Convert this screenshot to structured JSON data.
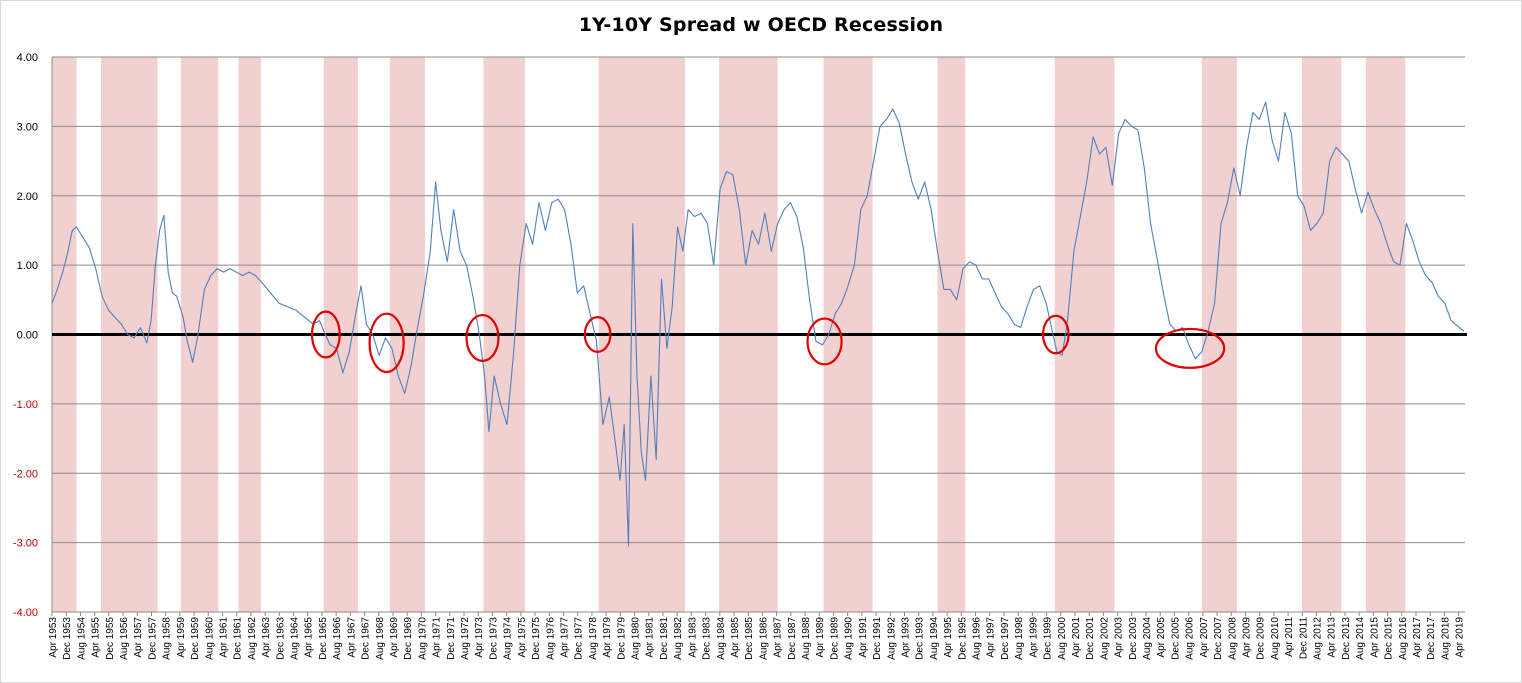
{
  "chart_data": {
    "type": "line",
    "title": "1Y-10Y Spread w OECD Recession",
    "xlabel": "",
    "ylabel": "",
    "ylim": [
      -4,
      4
    ],
    "x_range": [
      "Apr 1953",
      "Jun 2019"
    ],
    "y_ticks": [
      "4.00",
      "3.00",
      "2.00",
      "1.00",
      "0.00",
      "-1.00",
      "-2.00",
      "-3.00",
      "-4.00"
    ],
    "grid": true,
    "legend": "none",
    "colors": {
      "line": "#4f81bd",
      "recession": "#f2d0d0",
      "zero_line": "#000000",
      "circle": "#e00000",
      "negative_tick": "#c00000",
      "grid": "#8c8c8c"
    },
    "x_tick_labels": [
      "Apr 1953",
      "Dec 1953",
      "Aug 1954",
      "Apr 1955",
      "Dec 1955",
      "Aug 1956",
      "Apr 1957",
      "Dec 1957",
      "Aug 1958",
      "Apr 1959",
      "Dec 1959",
      "Aug 1960",
      "Apr 1961",
      "Dec 1961",
      "Aug 1962",
      "Apr 1963",
      "Dec 1963",
      "Aug 1964",
      "Apr 1965",
      "Dec 1965",
      "Aug 1966",
      "Apr 1967",
      "Dec 1967",
      "Aug 1968",
      "Apr 1969",
      "Dec 1969",
      "Aug 1970",
      "Apr 1971",
      "Dec 1971",
      "Aug 1972",
      "Apr 1973",
      "Dec 1973",
      "Aug 1974",
      "Apr 1975",
      "Dec 1975",
      "Aug 1976",
      "Apr 1977",
      "Dec 1977",
      "Aug 1978",
      "Apr 1979",
      "Dec 1979",
      "Aug 1980",
      "Apr 1981",
      "Dec 1981",
      "Aug 1982",
      "Apr 1983",
      "Dec 1983",
      "Aug 1984",
      "Apr 1985",
      "Dec 1985",
      "Aug 1986",
      "Apr 1987",
      "Dec 1987",
      "Aug 1988",
      "Apr 1989",
      "Dec 1989",
      "Aug 1990",
      "Apr 1991",
      "Dec 1991",
      "Aug 1992",
      "Apr 1993",
      "Dec 1993",
      "Aug 1994",
      "Apr 1995",
      "Dec 1995",
      "Aug 1996",
      "Apr 1997",
      "Dec 1997",
      "Aug 1998",
      "Apr 1999",
      "Dec 1999",
      "Aug 2000",
      "Apr 2001",
      "Dec 2001",
      "Aug 2002",
      "Apr 2003",
      "Dec 2003",
      "Aug 2004",
      "Apr 2005",
      "Dec 2005",
      "Aug 2006",
      "Apr 2007",
      "Dec 2007",
      "Aug 2008",
      "Apr 2009",
      "Dec 2009",
      "Aug 2010",
      "Apr 2011",
      "Dec 2011",
      "Aug 2012",
      "Apr 2013",
      "Dec 2013",
      "Aug 2014",
      "Apr 2015",
      "Dec 2015",
      "Aug 2016",
      "Apr 2017",
      "Dec 2017",
      "Aug 2018",
      "Apr 2019"
    ],
    "recessions": [
      {
        "start": 1953.25,
        "end": 1954.4
      },
      {
        "start": 1955.55,
        "end": 1958.2
      },
      {
        "start": 1959.3,
        "end": 1961.05
      },
      {
        "start": 1962.0,
        "end": 1963.05
      },
      {
        "start": 1966.0,
        "end": 1967.6
      },
      {
        "start": 1969.1,
        "end": 1970.75
      },
      {
        "start": 1973.5,
        "end": 1975.45
      },
      {
        "start": 1978.9,
        "end": 1982.95
      },
      {
        "start": 1984.55,
        "end": 1987.3
      },
      {
        "start": 1989.45,
        "end": 1991.75
      },
      {
        "start": 1994.8,
        "end": 1996.1
      },
      {
        "start": 2000.3,
        "end": 2003.1
      },
      {
        "start": 2007.2,
        "end": 2008.85
      },
      {
        "start": 2011.9,
        "end": 2013.75
      },
      {
        "start": 2014.9,
        "end": 2016.75
      }
    ],
    "inversion_circles": [
      {
        "x": 1966.1,
        "y": 0.0,
        "rx_years": 0.65,
        "ry": 0.33
      },
      {
        "x": 1968.95,
        "y": -0.12,
        "rx_years": 0.8,
        "ry": 0.42
      },
      {
        "x": 1973.45,
        "y": -0.05,
        "rx_years": 0.75,
        "ry": 0.33
      },
      {
        "x": 1978.85,
        "y": 0.0,
        "rx_years": 0.6,
        "ry": 0.25
      },
      {
        "x": 1989.5,
        "y": -0.1,
        "rx_years": 0.8,
        "ry": 0.33
      },
      {
        "x": 2000.35,
        "y": 0.0,
        "rx_years": 0.6,
        "ry": 0.27
      },
      {
        "x": 2006.65,
        "y": -0.2,
        "rx_years": 1.6,
        "ry": 0.28
      }
    ],
    "series": [
      {
        "name": "1Y-10Y Spread",
        "points": [
          [
            1953.25,
            0.45
          ],
          [
            1953.5,
            0.65
          ],
          [
            1953.75,
            0.9
          ],
          [
            1954.0,
            1.2
          ],
          [
            1954.2,
            1.5
          ],
          [
            1954.4,
            1.55
          ],
          [
            1954.7,
            1.4
          ],
          [
            1955.0,
            1.25
          ],
          [
            1955.3,
            0.95
          ],
          [
            1955.6,
            0.55
          ],
          [
            1955.9,
            0.35
          ],
          [
            1956.2,
            0.25
          ],
          [
            1956.5,
            0.15
          ],
          [
            1956.8,
            0.0
          ],
          [
            1957.1,
            -0.05
          ],
          [
            1957.4,
            0.1
          ],
          [
            1957.7,
            -0.12
          ],
          [
            1957.9,
            0.2
          ],
          [
            1958.1,
            1.0
          ],
          [
            1958.3,
            1.5
          ],
          [
            1958.5,
            1.72
          ],
          [
            1958.7,
            0.9
          ],
          [
            1958.9,
            0.6
          ],
          [
            1959.1,
            0.55
          ],
          [
            1959.4,
            0.25
          ],
          [
            1959.6,
            -0.1
          ],
          [
            1959.85,
            -0.4
          ],
          [
            1960.1,
            0.0
          ],
          [
            1960.4,
            0.65
          ],
          [
            1960.7,
            0.85
          ],
          [
            1961.0,
            0.95
          ],
          [
            1961.3,
            0.9
          ],
          [
            1961.6,
            0.95
          ],
          [
            1961.9,
            0.9
          ],
          [
            1962.2,
            0.85
          ],
          [
            1962.5,
            0.9
          ],
          [
            1962.8,
            0.85
          ],
          [
            1963.1,
            0.75
          ],
          [
            1963.5,
            0.6
          ],
          [
            1963.9,
            0.45
          ],
          [
            1964.3,
            0.4
          ],
          [
            1964.7,
            0.35
          ],
          [
            1965.1,
            0.25
          ],
          [
            1965.5,
            0.15
          ],
          [
            1965.8,
            0.2
          ],
          [
            1966.0,
            0.05
          ],
          [
            1966.3,
            -0.15
          ],
          [
            1966.6,
            -0.2
          ],
          [
            1966.9,
            -0.55
          ],
          [
            1967.2,
            -0.25
          ],
          [
            1967.5,
            0.3
          ],
          [
            1967.75,
            0.7
          ],
          [
            1968.0,
            0.15
          ],
          [
            1968.3,
            0.0
          ],
          [
            1968.6,
            -0.3
          ],
          [
            1968.9,
            -0.05
          ],
          [
            1969.2,
            -0.2
          ],
          [
            1969.5,
            -0.6
          ],
          [
            1969.8,
            -0.85
          ],
          [
            1970.1,
            -0.45
          ],
          [
            1970.4,
            0.1
          ],
          [
            1970.7,
            0.6
          ],
          [
            1971.0,
            1.2
          ],
          [
            1971.25,
            2.2
          ],
          [
            1971.5,
            1.5
          ],
          [
            1971.8,
            1.05
          ],
          [
            1972.1,
            1.8
          ],
          [
            1972.4,
            1.2
          ],
          [
            1972.7,
            1.0
          ],
          [
            1973.0,
            0.55
          ],
          [
            1973.3,
            0.0
          ],
          [
            1973.55,
            -0.6
          ],
          [
            1973.75,
            -1.4
          ],
          [
            1974.0,
            -0.6
          ],
          [
            1974.3,
            -1.0
          ],
          [
            1974.6,
            -1.3
          ],
          [
            1974.9,
            -0.3
          ],
          [
            1975.2,
            1.0
          ],
          [
            1975.5,
            1.6
          ],
          [
            1975.8,
            1.3
          ],
          [
            1976.1,
            1.9
          ],
          [
            1976.4,
            1.5
          ],
          [
            1976.7,
            1.9
          ],
          [
            1977.0,
            1.95
          ],
          [
            1977.3,
            1.8
          ],
          [
            1977.6,
            1.3
          ],
          [
            1977.9,
            0.6
          ],
          [
            1978.2,
            0.7
          ],
          [
            1978.5,
            0.3
          ],
          [
            1978.8,
            -0.1
          ],
          [
            1979.1,
            -1.3
          ],
          [
            1979.4,
            -0.9
          ],
          [
            1979.7,
            -1.6
          ],
          [
            1979.9,
            -2.1
          ],
          [
            1980.1,
            -1.3
          ],
          [
            1980.3,
            -3.05
          ],
          [
            1980.5,
            1.6
          ],
          [
            1980.7,
            -0.6
          ],
          [
            1980.9,
            -1.7
          ],
          [
            1981.1,
            -2.1
          ],
          [
            1981.35,
            -0.6
          ],
          [
            1981.6,
            -1.8
          ],
          [
            1981.85,
            0.8
          ],
          [
            1982.1,
            -0.2
          ],
          [
            1982.35,
            0.4
          ],
          [
            1982.6,
            1.55
          ],
          [
            1982.85,
            1.2
          ],
          [
            1983.1,
            1.8
          ],
          [
            1983.4,
            1.7
          ],
          [
            1983.7,
            1.75
          ],
          [
            1984.0,
            1.6
          ],
          [
            1984.3,
            1.0
          ],
          [
            1984.6,
            2.1
          ],
          [
            1984.9,
            2.35
          ],
          [
            1985.2,
            2.3
          ],
          [
            1985.5,
            1.8
          ],
          [
            1985.8,
            1.0
          ],
          [
            1986.1,
            1.5
          ],
          [
            1986.4,
            1.3
          ],
          [
            1986.7,
            1.75
          ],
          [
            1987.0,
            1.2
          ],
          [
            1987.3,
            1.6
          ],
          [
            1987.6,
            1.8
          ],
          [
            1987.9,
            1.9
          ],
          [
            1988.2,
            1.7
          ],
          [
            1988.5,
            1.25
          ],
          [
            1988.8,
            0.5
          ],
          [
            1989.1,
            -0.1
          ],
          [
            1989.4,
            -0.15
          ],
          [
            1989.7,
            0.0
          ],
          [
            1990.0,
            0.3
          ],
          [
            1990.3,
            0.45
          ],
          [
            1990.6,
            0.7
          ],
          [
            1990.9,
            1.0
          ],
          [
            1991.2,
            1.8
          ],
          [
            1991.5,
            2.0
          ],
          [
            1991.8,
            2.5
          ],
          [
            1992.1,
            3.0
          ],
          [
            1992.4,
            3.1
          ],
          [
            1992.7,
            3.25
          ],
          [
            1993.0,
            3.05
          ],
          [
            1993.3,
            2.6
          ],
          [
            1993.6,
            2.2
          ],
          [
            1993.9,
            1.95
          ],
          [
            1994.2,
            2.2
          ],
          [
            1994.5,
            1.8
          ],
          [
            1994.8,
            1.2
          ],
          [
            1995.1,
            0.65
          ],
          [
            1995.4,
            0.65
          ],
          [
            1995.7,
            0.5
          ],
          [
            1996.0,
            0.95
          ],
          [
            1996.3,
            1.05
          ],
          [
            1996.6,
            1.0
          ],
          [
            1996.9,
            0.8
          ],
          [
            1997.2,
            0.8
          ],
          [
            1997.5,
            0.6
          ],
          [
            1997.8,
            0.4
          ],
          [
            1998.1,
            0.3
          ],
          [
            1998.4,
            0.15
          ],
          [
            1998.7,
            0.1
          ],
          [
            1999.0,
            0.4
          ],
          [
            1999.3,
            0.65
          ],
          [
            1999.6,
            0.7
          ],
          [
            1999.9,
            0.45
          ],
          [
            2000.15,
            0.1
          ],
          [
            2000.4,
            -0.25
          ],
          [
            2000.65,
            -0.3
          ],
          [
            2000.9,
            0.2
          ],
          [
            2001.2,
            1.2
          ],
          [
            2001.5,
            1.7
          ],
          [
            2001.8,
            2.2
          ],
          [
            2002.1,
            2.85
          ],
          [
            2002.4,
            2.6
          ],
          [
            2002.7,
            2.7
          ],
          [
            2003.0,
            2.15
          ],
          [
            2003.3,
            2.9
          ],
          [
            2003.6,
            3.1
          ],
          [
            2003.9,
            3.0
          ],
          [
            2004.2,
            2.95
          ],
          [
            2004.5,
            2.4
          ],
          [
            2004.8,
            1.6
          ],
          [
            2005.1,
            1.1
          ],
          [
            2005.4,
            0.6
          ],
          [
            2005.7,
            0.15
          ],
          [
            2006.0,
            0.05
          ],
          [
            2006.3,
            0.1
          ],
          [
            2006.6,
            -0.15
          ],
          [
            2006.9,
            -0.35
          ],
          [
            2007.2,
            -0.25
          ],
          [
            2007.5,
            0.05
          ],
          [
            2007.8,
            0.45
          ],
          [
            2008.1,
            1.6
          ],
          [
            2008.4,
            1.9
          ],
          [
            2008.7,
            2.4
          ],
          [
            2009.0,
            2.0
          ],
          [
            2009.3,
            2.7
          ],
          [
            2009.6,
            3.2
          ],
          [
            2009.9,
            3.1
          ],
          [
            2010.2,
            3.35
          ],
          [
            2010.5,
            2.8
          ],
          [
            2010.8,
            2.5
          ],
          [
            2011.1,
            3.2
          ],
          [
            2011.4,
            2.9
          ],
          [
            2011.7,
            2.0
          ],
          [
            2012.0,
            1.85
          ],
          [
            2012.3,
            1.5
          ],
          [
            2012.6,
            1.6
          ],
          [
            2012.9,
            1.75
          ],
          [
            2013.2,
            2.5
          ],
          [
            2013.5,
            2.7
          ],
          [
            2013.8,
            2.6
          ],
          [
            2014.1,
            2.5
          ],
          [
            2014.4,
            2.1
          ],
          [
            2014.7,
            1.75
          ],
          [
            2015.0,
            2.05
          ],
          [
            2015.3,
            1.8
          ],
          [
            2015.6,
            1.6
          ],
          [
            2015.9,
            1.3
          ],
          [
            2016.2,
            1.05
          ],
          [
            2016.5,
            1.0
          ],
          [
            2016.8,
            1.6
          ],
          [
            2017.1,
            1.35
          ],
          [
            2017.4,
            1.05
          ],
          [
            2017.7,
            0.85
          ],
          [
            2018.0,
            0.75
          ],
          [
            2018.3,
            0.55
          ],
          [
            2018.6,
            0.45
          ],
          [
            2018.9,
            0.2
          ],
          [
            2019.2,
            0.12
          ],
          [
            2019.5,
            0.05
          ]
        ]
      }
    ]
  }
}
